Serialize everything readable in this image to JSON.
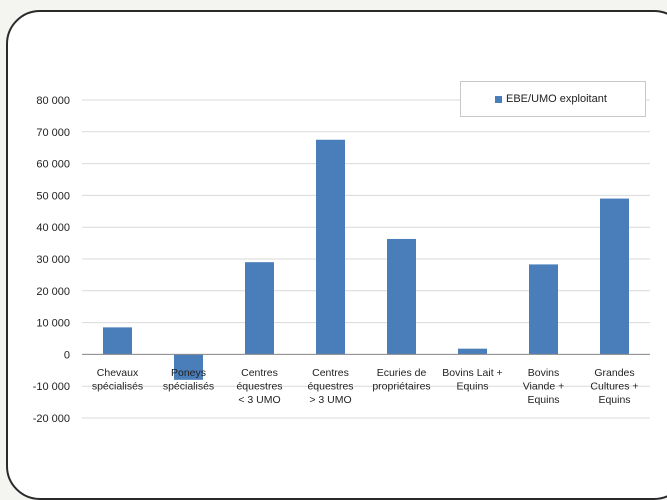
{
  "chart_data": {
    "type": "bar",
    "categories": [
      [
        "Chevaux",
        "spécialisés"
      ],
      [
        "Poneys",
        "spécialisés"
      ],
      [
        "Centres",
        "équestres",
        "< 3 UMO"
      ],
      [
        "Centres",
        "équestres",
        "> 3 UMO"
      ],
      [
        "Ecuries de",
        "propriétaires"
      ],
      [
        "Bovins Lait +",
        "Equins"
      ],
      [
        "Bovins",
        "Viande +",
        "Equins"
      ],
      [
        "Grandes",
        "Cultures +",
        "Equins"
      ]
    ],
    "series": [
      {
        "name": "EBE/UMO exploitant",
        "values": [
          8500,
          -8000,
          29000,
          67500,
          36300,
          1800,
          28300,
          49000
        ]
      }
    ],
    "ylim": [
      -20000,
      80000
    ],
    "yticks": [
      -20000,
      -10000,
      0,
      10000,
      20000,
      30000,
      40000,
      50000,
      60000,
      70000,
      80000
    ],
    "ytick_labels": [
      "-20 000",
      "-10 000",
      "0",
      "10 000",
      "20 000",
      "30 000",
      "40 000",
      "50 000",
      "60 000",
      "70 000",
      "80 000"
    ],
    "grid": "horizontal",
    "legend_position": "top-right",
    "colors": {
      "bar": "#4a7ebb",
      "grid": "#d9d9d9",
      "axis": "#8a8a8a"
    }
  }
}
